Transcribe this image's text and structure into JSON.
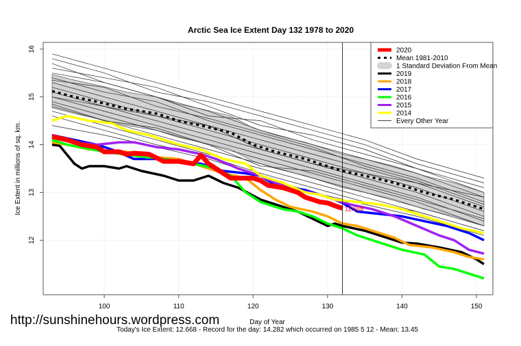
{
  "chart_data": {
    "type": "line",
    "title": "Arctic Sea Ice Extent Day 132 1978 to 2020",
    "xlabel": "Day of Year",
    "ylabel": "Ice Extent in millions of sq. km.",
    "subtitle": "Today's Ice Extent: 12.668  - Record for the day: 14.282 which occurred on 1985 5 12  - Mean: 13.45",
    "watermark": "http://sunshinehours.wordpress.com",
    "current_value_label": "12.668",
    "xlim": [
      91.8,
      152.2
    ],
    "ylim": [
      10.86,
      16.14
    ],
    "xticks": [
      100,
      110,
      120,
      130,
      140,
      150
    ],
    "yticks": [
      12,
      13,
      14,
      15,
      16
    ],
    "grid": true,
    "vertical_marker_day": 132,
    "legend_placement": "top-right",
    "legend": [
      {
        "label": "2020",
        "color": "#ff0000",
        "style": "thick"
      },
      {
        "label": "Mean 1981-2010",
        "color": "#000000",
        "style": "dashed"
      },
      {
        "label": "1 Standard Deviation From Mean",
        "color": "#d3d3d3",
        "style": "band"
      },
      {
        "label": "2019",
        "color": "#000000",
        "style": "solid"
      },
      {
        "label": "2018",
        "color": "#ffa500",
        "style": "solid"
      },
      {
        "label": "2017",
        "color": "#0000ff",
        "style": "solid"
      },
      {
        "label": "2016",
        "color": "#00ff00",
        "style": "solid"
      },
      {
        "label": "2015",
        "color": "#a020f0",
        "style": "solid"
      },
      {
        "label": "2014",
        "color": "#ffff00",
        "style": "solid"
      },
      {
        "label": "Every Other Year",
        "color": "#000000",
        "style": "thin"
      }
    ],
    "mean": {
      "days": [
        93,
        96,
        99,
        103,
        107,
        110,
        113,
        117,
        120,
        123,
        127,
        131,
        132,
        135,
        139,
        143,
        147,
        151
      ],
      "values": [
        15.12,
        15.0,
        14.9,
        14.75,
        14.65,
        14.5,
        14.4,
        14.25,
        14.0,
        13.85,
        13.7,
        13.5,
        13.45,
        13.35,
        13.2,
        13.0,
        12.85,
        12.65
      ],
      "sd": 0.35
    },
    "series": [
      {
        "name": "2019",
        "color": "#000000",
        "days": [
          93,
          94,
          96,
          97,
          98,
          100,
          102,
          103,
          105,
          108,
          110,
          112,
          113,
          114,
          116,
          118,
          121,
          123,
          126,
          128,
          130,
          131,
          132,
          135,
          137,
          140,
          142,
          145,
          148,
          150,
          151
        ],
        "values": [
          14.0,
          13.98,
          13.6,
          13.5,
          13.55,
          13.55,
          13.5,
          13.55,
          13.45,
          13.35,
          13.25,
          13.25,
          13.3,
          13.35,
          13.2,
          13.1,
          12.85,
          12.75,
          12.6,
          12.45,
          12.3,
          12.35,
          12.3,
          12.2,
          12.1,
          11.95,
          11.93,
          11.85,
          11.75,
          11.6,
          11.5
        ]
      },
      {
        "name": "2018",
        "color": "#ffa500",
        "days": [
          93,
          95,
          98,
          100,
          103,
          106,
          110,
          113,
          116,
          119,
          121,
          123,
          125,
          128,
          130,
          132,
          134,
          136,
          139,
          141,
          144,
          147,
          149,
          151
        ],
        "values": [
          14.05,
          14.0,
          13.9,
          13.88,
          13.85,
          13.75,
          13.7,
          13.55,
          13.4,
          13.3,
          13.05,
          12.85,
          12.7,
          12.6,
          12.5,
          12.35,
          12.3,
          12.2,
          12.05,
          11.9,
          11.85,
          11.75,
          11.65,
          11.6
        ]
      },
      {
        "name": "2017",
        "color": "#0000ff",
        "days": [
          93,
          96,
          99,
          101,
          104,
          108,
          110,
          113,
          116,
          119,
          121,
          123,
          125,
          127,
          129,
          131,
          132,
          134,
          137,
          140,
          143,
          146,
          149,
          151
        ],
        "values": [
          14.2,
          14.1,
          14.0,
          13.9,
          13.7,
          13.7,
          13.65,
          13.6,
          13.45,
          13.4,
          13.35,
          13.15,
          13.1,
          13.05,
          12.95,
          12.85,
          12.78,
          12.6,
          12.55,
          12.5,
          12.4,
          12.3,
          12.15,
          12.0
        ]
      },
      {
        "name": "2016",
        "color": "#00ff00",
        "days": [
          93,
          95,
          100,
          105,
          108,
          112,
          115,
          117,
          119,
          121,
          124,
          126,
          128,
          130,
          132,
          134,
          136,
          138,
          140,
          143,
          145,
          147,
          149,
          151
        ],
        "values": [
          14.1,
          14.0,
          13.85,
          13.75,
          13.7,
          13.6,
          13.5,
          13.35,
          13.0,
          12.8,
          12.65,
          12.6,
          12.5,
          12.35,
          12.25,
          12.1,
          12.0,
          11.9,
          11.8,
          11.7,
          11.45,
          11.4,
          11.3,
          11.2
        ]
      },
      {
        "name": "2015",
        "color": "#a020f0",
        "days": [
          93,
          96,
          99,
          102,
          104,
          107,
          110,
          113,
          115,
          118,
          121,
          123,
          126,
          129,
          131,
          133,
          136,
          139,
          142,
          145,
          147,
          149,
          151
        ],
        "values": [
          14.15,
          14.05,
          14.0,
          14.05,
          14.05,
          13.95,
          13.9,
          13.8,
          13.7,
          13.5,
          13.35,
          13.2,
          13.05,
          12.95,
          12.85,
          12.75,
          12.65,
          12.5,
          12.3,
          12.1,
          12.0,
          11.8,
          11.72
        ]
      },
      {
        "name": "2014",
        "color": "#ffff00",
        "days": [
          93,
          95,
          98,
          101,
          103,
          106,
          108,
          110,
          113,
          116,
          119,
          121,
          124,
          127,
          129,
          131,
          134,
          137,
          140,
          143,
          146,
          148,
          151
        ],
        "values": [
          14.5,
          14.6,
          14.5,
          14.45,
          14.3,
          14.2,
          14.1,
          14.0,
          13.9,
          13.7,
          13.6,
          13.35,
          13.2,
          13.0,
          12.95,
          12.85,
          12.8,
          12.75,
          12.65,
          12.5,
          12.35,
          12.25,
          12.15
        ]
      },
      {
        "name": "2020",
        "color": "#ff0000",
        "days": [
          93,
          95,
          97,
          99,
          100,
          102,
          103,
          104,
          106,
          108,
          110,
          112,
          113,
          114,
          115,
          117,
          118,
          120,
          121,
          122,
          124,
          126,
          127,
          129,
          130,
          131,
          132
        ],
        "values": [
          14.17,
          14.1,
          14.0,
          13.95,
          13.85,
          13.85,
          13.8,
          13.82,
          13.8,
          13.65,
          13.65,
          13.6,
          13.78,
          13.6,
          13.5,
          13.3,
          13.3,
          13.3,
          13.25,
          13.15,
          13.1,
          13.0,
          12.9,
          12.8,
          12.78,
          12.72,
          12.668
        ]
      }
    ],
    "other_years": {
      "days": [
        93,
        100,
        107,
        114,
        121,
        128,
        135,
        142,
        151
      ],
      "lines": [
        [
          15.9,
          15.6,
          15.3,
          15.0,
          14.7,
          14.4,
          14.1,
          13.7,
          13.3
        ],
        [
          15.8,
          15.5,
          15.1,
          14.9,
          14.6,
          14.3,
          14.0,
          13.6,
          13.2
        ],
        [
          15.6,
          15.4,
          15.2,
          14.8,
          14.4,
          14.2,
          13.9,
          13.5,
          13.0
        ],
        [
          15.5,
          15.3,
          15.0,
          14.7,
          14.3,
          14.0,
          13.7,
          13.4,
          12.9
        ],
        [
          15.4,
          15.1,
          14.9,
          14.5,
          14.2,
          13.9,
          13.6,
          13.3,
          12.8
        ],
        [
          15.3,
          15.0,
          14.7,
          14.4,
          14.1,
          13.8,
          13.5,
          13.2,
          12.7
        ],
        [
          15.2,
          14.9,
          14.6,
          14.3,
          14.0,
          13.7,
          13.4,
          13.1,
          12.6
        ],
        [
          15.1,
          14.8,
          14.5,
          14.2,
          13.9,
          13.6,
          13.3,
          13.0,
          12.5
        ],
        [
          15.0,
          14.7,
          14.4,
          14.1,
          13.8,
          13.5,
          13.2,
          12.9,
          12.4
        ],
        [
          14.9,
          14.6,
          14.3,
          14.0,
          13.7,
          13.4,
          13.1,
          12.8,
          12.3
        ],
        [
          14.8,
          14.5,
          14.2,
          13.9,
          13.6,
          13.3,
          13.0,
          12.7,
          12.3
        ],
        [
          14.7,
          14.4,
          14.1,
          13.8,
          13.5,
          13.2,
          12.9,
          12.6,
          12.2
        ],
        [
          14.6,
          14.3,
          14.0,
          13.75,
          13.4,
          13.1,
          12.8,
          12.6,
          12.2
        ],
        [
          14.4,
          14.2,
          13.95,
          13.7,
          13.35,
          13.0,
          12.75,
          12.5,
          12.1
        ],
        [
          15.7,
          15.3,
          15.0,
          14.6,
          14.5,
          14.1,
          13.8,
          13.5,
          13.1
        ],
        [
          15.0,
          14.8,
          14.6,
          14.4,
          13.9,
          13.6,
          13.4,
          13.2,
          12.9
        ],
        [
          14.85,
          14.5,
          14.35,
          14.0,
          13.55,
          13.45,
          13.15,
          12.85,
          12.45
        ],
        [
          15.35,
          15.2,
          14.8,
          14.55,
          14.25,
          13.95,
          13.55,
          13.25,
          12.75
        ]
      ]
    }
  }
}
